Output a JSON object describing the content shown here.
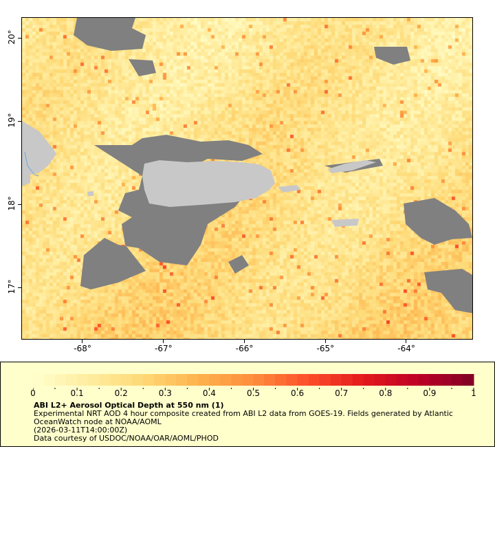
{
  "map": {
    "lon_range": [
      -68.75,
      -63.17
    ],
    "lat_range": [
      16.37,
      20.25
    ],
    "lon_ticks": [
      {
        "value": -68,
        "label": "-68°"
      },
      {
        "value": -67,
        "label": "-67°"
      },
      {
        "value": -66,
        "label": "-66°"
      },
      {
        "value": -65,
        "label": "-65°"
      },
      {
        "value": -64,
        "label": "-64°"
      }
    ],
    "lat_ticks": [
      {
        "value": 20,
        "label": "20°"
      },
      {
        "value": 19,
        "label": "19°"
      },
      {
        "value": 18,
        "label": "18°"
      },
      {
        "value": 17,
        "label": "17°"
      }
    ],
    "colors": {
      "land": "#c8c8c8",
      "no_data": "#808080",
      "coast": "#6fa8dc"
    }
  },
  "legend": {
    "colorbar": {
      "min": 0,
      "max": 1,
      "steps": 40,
      "labels": [
        "0",
        "0.1",
        "0.2",
        "0.3",
        "0.4",
        "0.5",
        "0.6",
        "0.7",
        "0.8",
        "0.9",
        "1"
      ],
      "palette": [
        "#ffffcc",
        "#ffeda0",
        "#fed976",
        "#feb24c",
        "#fd8d3c",
        "#fc4e2a",
        "#e31a1c",
        "#bd0026",
        "#800026"
      ]
    },
    "title": "ABI L2+ Aerosol Optical Depth at 550 nm (1)",
    "line1": "Experimental NRT AOD 4 hour composite created from ABI L2 data from GOES-19. Fields generated by Atlantic",
    "line2": "OceanWatch node at NOAA/AOML",
    "line3": "(2026-03-11T14:00:00Z)",
    "line4": "Data courtesy of USDOC/NOAA/OAR/AOML/PHOD"
  }
}
